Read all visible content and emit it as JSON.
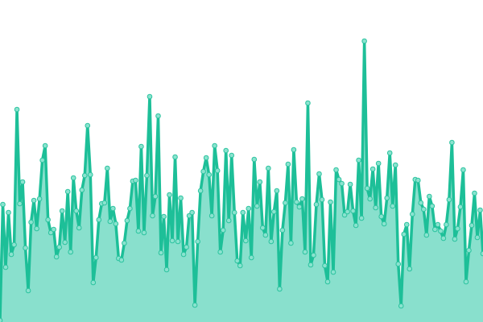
{
  "chart_data": {
    "type": "area",
    "title": "",
    "xlabel": "",
    "ylabel": "",
    "ylim": [
      0,
      400
    ],
    "grid": false,
    "legend": "none",
    "colors": {
      "line": "#1dbf98",
      "fill": "#89e0cd",
      "marker_fill": "#8ae3cf",
      "marker_stroke": "#2cc39f"
    },
    "values": [
      2,
      146,
      68,
      136,
      84,
      96,
      264,
      147,
      174,
      92,
      39,
      124,
      151,
      116,
      153,
      201,
      219,
      127,
      111,
      115,
      81,
      93,
      138,
      99,
      162,
      87,
      179,
      138,
      117,
      164,
      182,
      244,
      183,
      49,
      80,
      127,
      147,
      148,
      191,
      125,
      141,
      122,
      79,
      77,
      98,
      126,
      141,
      175,
      176,
      113,
      218,
      111,
      182,
      280,
      132,
      156,
      256,
      86,
      131,
      65,
      158,
      101,
      205,
      100,
      154,
      84,
      93,
      132,
      136,
      21,
      100,
      163,
      187,
      204,
      183,
      132,
      219,
      188,
      87,
      114,
      213,
      126,
      207,
      136,
      76,
      70,
      136,
      101,
      141,
      80,
      202,
      144,
      174,
      117,
      108,
      191,
      100,
      137,
      163,
      41,
      114,
      148,
      196,
      98,
      214,
      149,
      143,
      153,
      87,
      272,
      71,
      83,
      146,
      184,
      152,
      70,
      50,
      149,
      62,
      189,
      177,
      172,
      133,
      137,
      171,
      138,
      120,
      201,
      129,
      349,
      166,
      153,
      190,
      142,
      197,
      131,
      122,
      154,
      210,
      144,
      195,
      72,
      20,
      109,
      121,
      66,
      134,
      177,
      176,
      148,
      140,
      108,
      156,
      144,
      115,
      121,
      113,
      104,
      121,
      152,
      223,
      103,
      116,
      143,
      189,
      50,
      89,
      120,
      160,
      105,
      139,
      85
    ]
  }
}
